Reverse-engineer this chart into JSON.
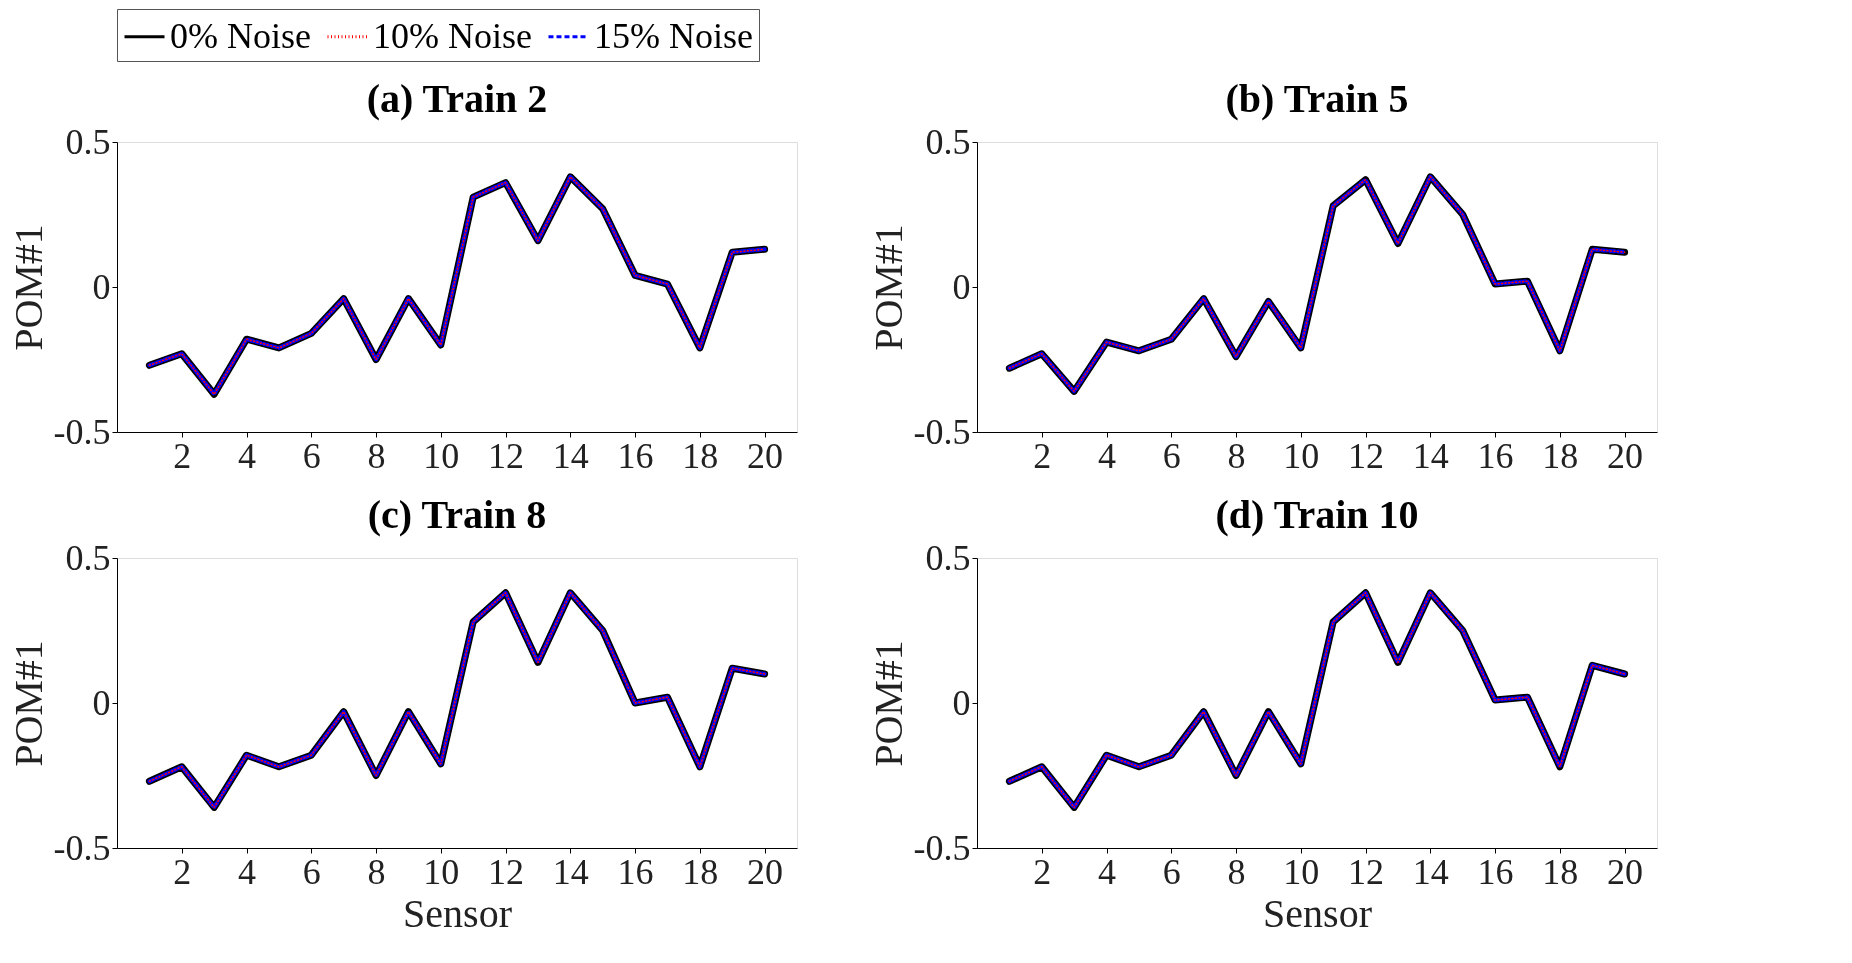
{
  "chart_data": [
    {
      "type": "line",
      "title": "(a) Train 2",
      "ylabel": "POM#1",
      "x": [
        1,
        2,
        3,
        4,
        5,
        6,
        7,
        8,
        9,
        10,
        11,
        12,
        13,
        14,
        15,
        16,
        17,
        18,
        19,
        20
      ],
      "xlim": [
        0,
        21
      ],
      "xticks": [
        2,
        4,
        6,
        8,
        10,
        12,
        14,
        16,
        18,
        20
      ],
      "ylim": [
        -0.5,
        0.5
      ],
      "yticks": [
        -0.5,
        0,
        0.5
      ],
      "legend": "top",
      "series": [
        {
          "name": "0% Noise",
          "color": "#000000",
          "line_style": "solid",
          "values": [
            -0.27,
            -0.23,
            -0.37,
            -0.18,
            -0.21,
            -0.16,
            -0.04,
            -0.25,
            -0.04,
            -0.2,
            0.31,
            0.36,
            0.16,
            0.38,
            0.27,
            0.04,
            0.01,
            -0.21,
            0.12,
            0.13
          ]
        },
        {
          "name": "10% Noise",
          "color": "#ff0000",
          "line_style": "dotted",
          "values": [
            -0.27,
            -0.23,
            -0.37,
            -0.18,
            -0.21,
            -0.16,
            -0.04,
            -0.25,
            -0.04,
            -0.2,
            0.31,
            0.36,
            0.16,
            0.38,
            0.27,
            0.04,
            0.01,
            -0.21,
            0.12,
            0.13
          ]
        },
        {
          "name": "15% Noise",
          "color": "#0000ff",
          "line_style": "dashed",
          "values": [
            -0.27,
            -0.23,
            -0.37,
            -0.18,
            -0.21,
            -0.16,
            -0.04,
            -0.25,
            -0.04,
            -0.2,
            0.31,
            0.36,
            0.16,
            0.38,
            0.27,
            0.04,
            0.01,
            -0.21,
            0.12,
            0.13
          ]
        }
      ]
    },
    {
      "type": "line",
      "title": "(b) Train 5",
      "ylabel": "POM#1",
      "x": [
        1,
        2,
        3,
        4,
        5,
        6,
        7,
        8,
        9,
        10,
        11,
        12,
        13,
        14,
        15,
        16,
        17,
        18,
        19,
        20
      ],
      "xlim": [
        0,
        21
      ],
      "xticks": [
        2,
        4,
        6,
        8,
        10,
        12,
        14,
        16,
        18,
        20
      ],
      "ylim": [
        -0.5,
        0.5
      ],
      "yticks": [
        -0.5,
        0,
        0.5
      ],
      "series": [
        {
          "name": "0% Noise",
          "color": "#000000",
          "line_style": "solid",
          "values": [
            -0.28,
            -0.23,
            -0.36,
            -0.19,
            -0.22,
            -0.18,
            -0.04,
            -0.24,
            -0.05,
            -0.21,
            0.28,
            0.37,
            0.15,
            0.38,
            0.25,
            0.01,
            0.02,
            -0.22,
            0.13,
            0.12
          ]
        },
        {
          "name": "10% Noise",
          "color": "#ff0000",
          "line_style": "dotted",
          "values": [
            -0.28,
            -0.23,
            -0.36,
            -0.19,
            -0.22,
            -0.18,
            -0.04,
            -0.24,
            -0.05,
            -0.21,
            0.28,
            0.37,
            0.15,
            0.38,
            0.25,
            0.01,
            0.02,
            -0.22,
            0.13,
            0.12
          ]
        },
        {
          "name": "15% Noise",
          "color": "#0000ff",
          "line_style": "dashed",
          "values": [
            -0.28,
            -0.23,
            -0.36,
            -0.19,
            -0.22,
            -0.18,
            -0.04,
            -0.24,
            -0.05,
            -0.21,
            0.28,
            0.37,
            0.15,
            0.38,
            0.25,
            0.01,
            0.02,
            -0.22,
            0.13,
            0.12
          ]
        }
      ]
    },
    {
      "type": "line",
      "title": "(c) Train 8",
      "xlabel": "Sensor",
      "ylabel": "POM#1",
      "x": [
        1,
        2,
        3,
        4,
        5,
        6,
        7,
        8,
        9,
        10,
        11,
        12,
        13,
        14,
        15,
        16,
        17,
        18,
        19,
        20
      ],
      "xlim": [
        0,
        21
      ],
      "xticks": [
        2,
        4,
        6,
        8,
        10,
        12,
        14,
        16,
        18,
        20
      ],
      "ylim": [
        -0.5,
        0.5
      ],
      "yticks": [
        -0.5,
        0,
        0.5
      ],
      "series": [
        {
          "name": "0% Noise",
          "color": "#000000",
          "line_style": "solid",
          "values": [
            -0.27,
            -0.22,
            -0.36,
            -0.18,
            -0.22,
            -0.18,
            -0.03,
            -0.25,
            -0.03,
            -0.21,
            0.28,
            0.38,
            0.14,
            0.38,
            0.25,
            0.0,
            0.02,
            -0.22,
            0.12,
            0.1
          ]
        },
        {
          "name": "10% Noise",
          "color": "#ff0000",
          "line_style": "dotted",
          "values": [
            -0.27,
            -0.22,
            -0.36,
            -0.18,
            -0.22,
            -0.18,
            -0.03,
            -0.25,
            -0.03,
            -0.21,
            0.28,
            0.38,
            0.14,
            0.38,
            0.25,
            0.0,
            0.02,
            -0.22,
            0.12,
            0.1
          ]
        },
        {
          "name": "15% Noise",
          "color": "#0000ff",
          "line_style": "dashed",
          "values": [
            -0.27,
            -0.22,
            -0.36,
            -0.18,
            -0.22,
            -0.18,
            -0.03,
            -0.25,
            -0.03,
            -0.21,
            0.28,
            0.38,
            0.14,
            0.38,
            0.25,
            0.0,
            0.02,
            -0.22,
            0.12,
            0.1
          ]
        }
      ]
    },
    {
      "type": "line",
      "title": "(d) Train 10",
      "xlabel": "Sensor",
      "ylabel": "POM#1",
      "x": [
        1,
        2,
        3,
        4,
        5,
        6,
        7,
        8,
        9,
        10,
        11,
        12,
        13,
        14,
        15,
        16,
        17,
        18,
        19,
        20
      ],
      "xlim": [
        0,
        21
      ],
      "xticks": [
        2,
        4,
        6,
        8,
        10,
        12,
        14,
        16,
        18,
        20
      ],
      "ylim": [
        -0.5,
        0.5
      ],
      "yticks": [
        -0.5,
        0,
        0.5
      ],
      "series": [
        {
          "name": "0% Noise",
          "color": "#000000",
          "line_style": "solid",
          "values": [
            -0.27,
            -0.22,
            -0.36,
            -0.18,
            -0.22,
            -0.18,
            -0.03,
            -0.25,
            -0.03,
            -0.21,
            0.28,
            0.38,
            0.14,
            0.38,
            0.25,
            0.01,
            0.02,
            -0.22,
            0.13,
            0.1
          ]
        },
        {
          "name": "10% Noise",
          "color": "#ff0000",
          "line_style": "dotted",
          "values": [
            -0.27,
            -0.22,
            -0.36,
            -0.18,
            -0.22,
            -0.18,
            -0.03,
            -0.25,
            -0.03,
            -0.21,
            0.28,
            0.38,
            0.14,
            0.38,
            0.25,
            0.01,
            0.02,
            -0.22,
            0.13,
            0.1
          ]
        },
        {
          "name": "15% Noise",
          "color": "#0000ff",
          "line_style": "dashed",
          "values": [
            -0.27,
            -0.22,
            -0.36,
            -0.18,
            -0.22,
            -0.18,
            -0.03,
            -0.25,
            -0.03,
            -0.21,
            0.28,
            0.38,
            0.14,
            0.38,
            0.25,
            0.01,
            0.02,
            -0.22,
            0.13,
            0.1
          ]
        }
      ]
    }
  ]
}
